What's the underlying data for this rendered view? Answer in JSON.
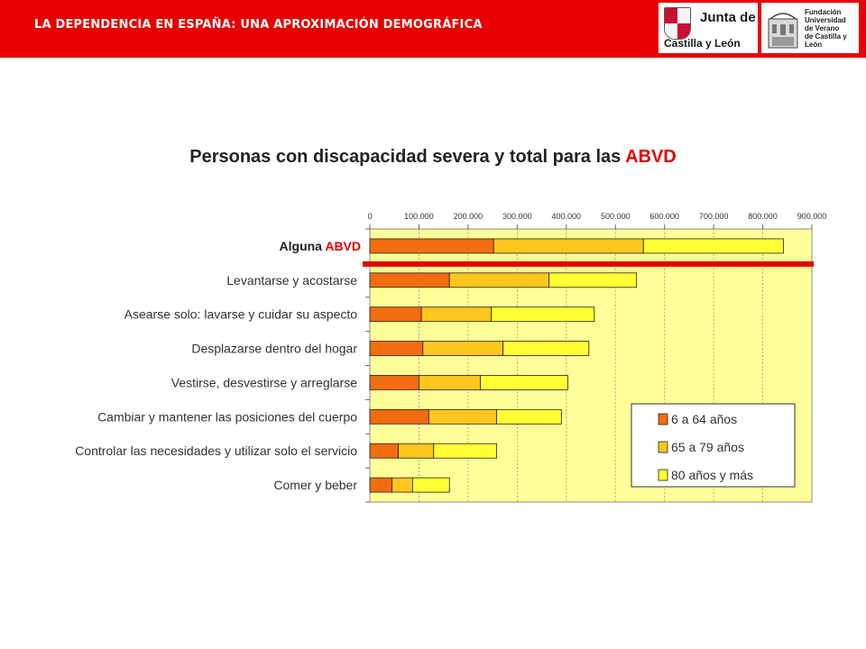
{
  "header": {
    "title": "LA DEPENDENCIA EN ESPAÑA: UNA APROXIMACIÓN DEMOGRÁFICA",
    "logo_jcyl_line1": "Junta de",
    "logo_jcyl_line2": "Castilla y León",
    "logo_fund_lines": [
      "Fundación",
      "Universidad",
      "de Verano",
      "de Castilla y León"
    ]
  },
  "chart_data": {
    "type": "bar",
    "orientation": "horizontal",
    "stacked": true,
    "title_main": "Personas con discapacidad severa y total para las",
    "title_highlight": "ABVD",
    "categories": [
      "Alguna ABVD",
      "Levantarse y acostarse",
      "Asearse solo: lavarse y cuidar su aspecto",
      "Desplazarse dentro del hogar",
      "Vestirse, desvestirse y arreglarse",
      "Cambiar y mantener las posiciones del cuerpo",
      "Controlar las necesidades  y utilizar solo el servicio",
      "Comer y beber"
    ],
    "first_label_parts": [
      "Alguna",
      "ABVD"
    ],
    "series": [
      {
        "name": "6 a 64 años",
        "color": "#f26c10",
        "values": [
          252000,
          162000,
          105000,
          108000,
          100000,
          120000,
          58000,
          45000
        ]
      },
      {
        "name": "65 a 79 años",
        "color": "#ffc61e",
        "values": [
          305000,
          203000,
          142000,
          163000,
          125000,
          138000,
          72000,
          42000
        ]
      },
      {
        "name": "80 años y más",
        "color": "#ffff33",
        "values": [
          285000,
          178000,
          210000,
          175000,
          178000,
          132000,
          128000,
          75000
        ]
      }
    ],
    "xlim": [
      0,
      900000
    ],
    "xticks": [
      0,
      100000,
      200000,
      300000,
      400000,
      500000,
      600000,
      700000,
      800000,
      900000
    ],
    "xtick_labels": [
      "0",
      "100.000",
      "200.000",
      "300.000",
      "400.000",
      "500.000",
      "600.000",
      "700.000",
      "800.000",
      "900.000"
    ],
    "x_axis_position": "top",
    "grid": "vertical-dashed",
    "plot_background": "#ffff99",
    "legend_position": "bottom-right",
    "highlight_line_color": "#e60000"
  }
}
